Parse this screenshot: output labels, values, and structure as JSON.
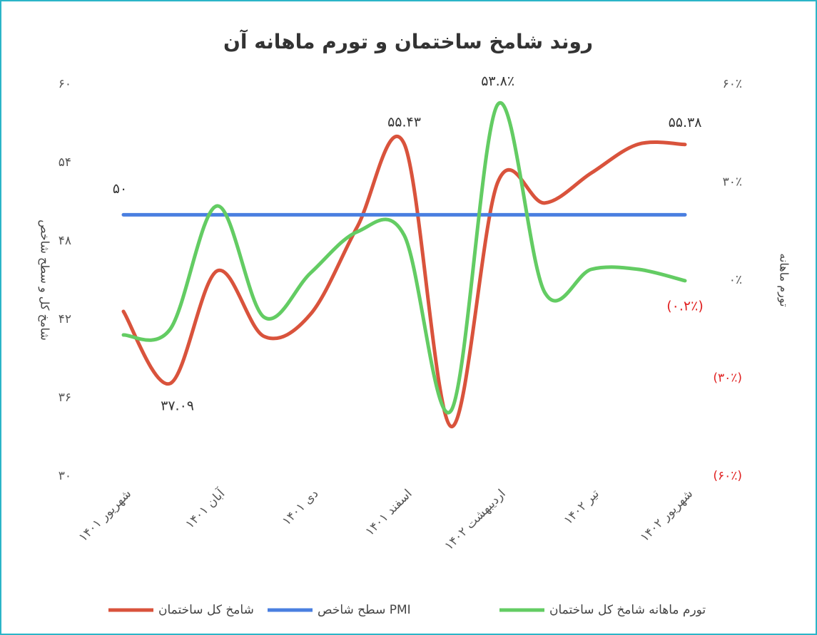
{
  "chart_data": {
    "type": "line",
    "title": "روند شامخ ساختمان و تورم ماهانه آن",
    "y_label": "شامخ کل و سطح شاخص",
    "y2_label": "تورم ماهانه",
    "categories": [
      "شهریور ۱۴۰۱",
      null,
      "آبان ۱۴۰۱",
      null,
      "دی ۱۴۰۱",
      null,
      "اسفند ۱۴۰۱",
      null,
      "اردیبهشت ۱۴۰۲",
      null,
      "تیر ۱۴۰۲",
      null,
      "شهریور ۱۴۰۲"
    ],
    "ylim": [
      30,
      60
    ],
    "yticks": [
      {
        "value": 30,
        "label": "۳۰"
      },
      {
        "value": 36,
        "label": "۳۶"
      },
      {
        "value": 42,
        "label": "۴۲"
      },
      {
        "value": 48,
        "label": "۴۸"
      },
      {
        "value": 54,
        "label": "۵۴"
      },
      {
        "value": 60,
        "label": "۶۰"
      }
    ],
    "y2lim": [
      -60,
      60
    ],
    "y2ticks": [
      {
        "value": -60,
        "label": "(۶۰٪)"
      },
      {
        "value": -30,
        "label": "(۳۰٪)"
      },
      {
        "value": 0,
        "label": "۰٪"
      },
      {
        "value": 30,
        "label": "۳۰٪"
      },
      {
        "value": 60,
        "label": "۶۰٪"
      }
    ],
    "negative_color": "#e02020",
    "smooth": true,
    "series": [
      {
        "name": "شامخ کل ساختمان",
        "color": "#d9533c",
        "values": [
          42.6,
          37.09,
          45.7,
          40.7,
          42.4,
          49.1,
          55.43,
          33.8,
          52.5,
          50.9,
          53.2,
          55.4,
          55.38
        ],
        "value_labels": [
          null,
          "۳۷.۰۹",
          null,
          null,
          null,
          null,
          "۵۵.۴۳",
          null,
          null,
          null,
          null,
          null,
          "۵۵.۳۸"
        ]
      },
      {
        "name": "سطح شاخص PMI",
        "color": "#4a7fe0",
        "values": [
          50,
          50,
          50,
          50,
          50,
          50,
          50,
          50,
          50,
          50,
          50,
          50,
          50
        ],
        "value_labels": [
          "۵۰",
          null,
          null,
          null,
          null,
          null,
          null,
          null,
          null,
          null,
          null,
          null,
          null
        ]
      },
      {
        "name": "تورم ماهانه شامخ کل ساختمان",
        "color": "#63cc63",
        "axis": "y2",
        "values": [
          -16.8,
          -15,
          22.7,
          -11.3,
          2.2,
          14.8,
          13.7,
          -40,
          53.8,
          -3.7,
          3.3,
          3.3,
          -0.2
        ],
        "value_labels": [
          null,
          null,
          null,
          null,
          null,
          null,
          null,
          null,
          "۵۳.۸٪",
          null,
          null,
          null,
          "(۰.۲٪)"
        ]
      }
    ]
  }
}
